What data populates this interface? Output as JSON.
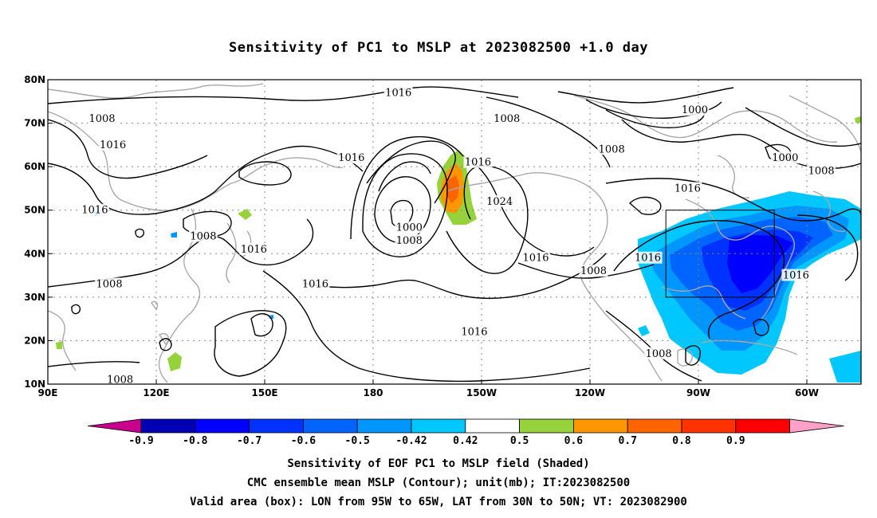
{
  "title": "Sensitivity of PC1 to MSLP at 2023082500 +1.0 day",
  "axes": {
    "lat_labels": [
      "80N",
      "70N",
      "60N",
      "50N",
      "40N",
      "30N",
      "20N",
      "10N"
    ],
    "lon_labels": [
      "90E",
      "120E",
      "150E",
      "180",
      "150W",
      "120W",
      "90W",
      "60W"
    ]
  },
  "contour_labels": [
    {
      "text": "1016",
      "lon": -173,
      "lat": 77
    },
    {
      "text": "1008",
      "lon": 105,
      "lat": 71
    },
    {
      "text": "1016",
      "lon": 108,
      "lat": 65
    },
    {
      "text": "1016",
      "lon": 174,
      "lat": 62
    },
    {
      "text": "1008",
      "lon": -143,
      "lat": 71
    },
    {
      "text": "1016",
      "lon": -151,
      "lat": 61
    },
    {
      "text": "1024",
      "lon": -145,
      "lat": 52
    },
    {
      "text": "1000",
      "lon": -91,
      "lat": 73
    },
    {
      "text": "1008",
      "lon": -114,
      "lat": 64
    },
    {
      "text": "1000",
      "lon": -66,
      "lat": 62
    },
    {
      "text": "1008",
      "lon": -56,
      "lat": 59
    },
    {
      "text": "1016",
      "lon": -93,
      "lat": 55
    },
    {
      "text": "1016",
      "lon": 103,
      "lat": 50
    },
    {
      "text": "1008",
      "lon": 133,
      "lat": 44
    },
    {
      "text": "1016",
      "lon": 147,
      "lat": 41
    },
    {
      "text": "1000",
      "lon": -170,
      "lat": 46
    },
    {
      "text": "1008",
      "lon": -170,
      "lat": 43
    },
    {
      "text": "1016",
      "lon": -135,
      "lat": 39
    },
    {
      "text": "1016",
      "lon": -104,
      "lat": 39
    },
    {
      "text": "1008",
      "lon": -119,
      "lat": 36
    },
    {
      "text": "1016",
      "lon": -63,
      "lat": 35
    },
    {
      "text": "1008",
      "lon": 107,
      "lat": 33
    },
    {
      "text": "1016",
      "lon": 164,
      "lat": 33
    },
    {
      "text": "1016",
      "lon": -152,
      "lat": 22
    },
    {
      "text": "1008",
      "lon": -101,
      "lat": 17
    },
    {
      "text": "1008",
      "lon": 110,
      "lat": 11
    }
  ],
  "colorbar": {
    "labels": [
      "-0.9",
      "-0.8",
      "-0.7",
      "-0.6",
      "-0.5",
      "-0.42",
      "0.42",
      "0.5",
      "0.6",
      "0.7",
      "0.8",
      "0.9"
    ],
    "colors": [
      "#0000b4",
      "#0000ff",
      "#0032ff",
      "#0064ff",
      "#0096ff",
      "#00c8ff",
      "#ffffff",
      "#96d23c",
      "#ff9600",
      "#ff6400",
      "#ff3200",
      "#ff0000"
    ],
    "low_end_color": "#c8008c",
    "high_end_color": "#ffa0c8"
  },
  "valid_box": {
    "lon_min": -95,
    "lon_max": -65,
    "lat_min": 30,
    "lat_max": 50
  },
  "captions": {
    "line1": "Sensitivity of EOF PC1 to MSLP field (Shaded)",
    "line2": "CMC ensemble mean MSLP (Contour); unit(mb); IT:2023082500",
    "line3": "Valid area (box): LON from 95W to 65W, LAT from 30N to 50N; VT: 2023082900"
  }
}
